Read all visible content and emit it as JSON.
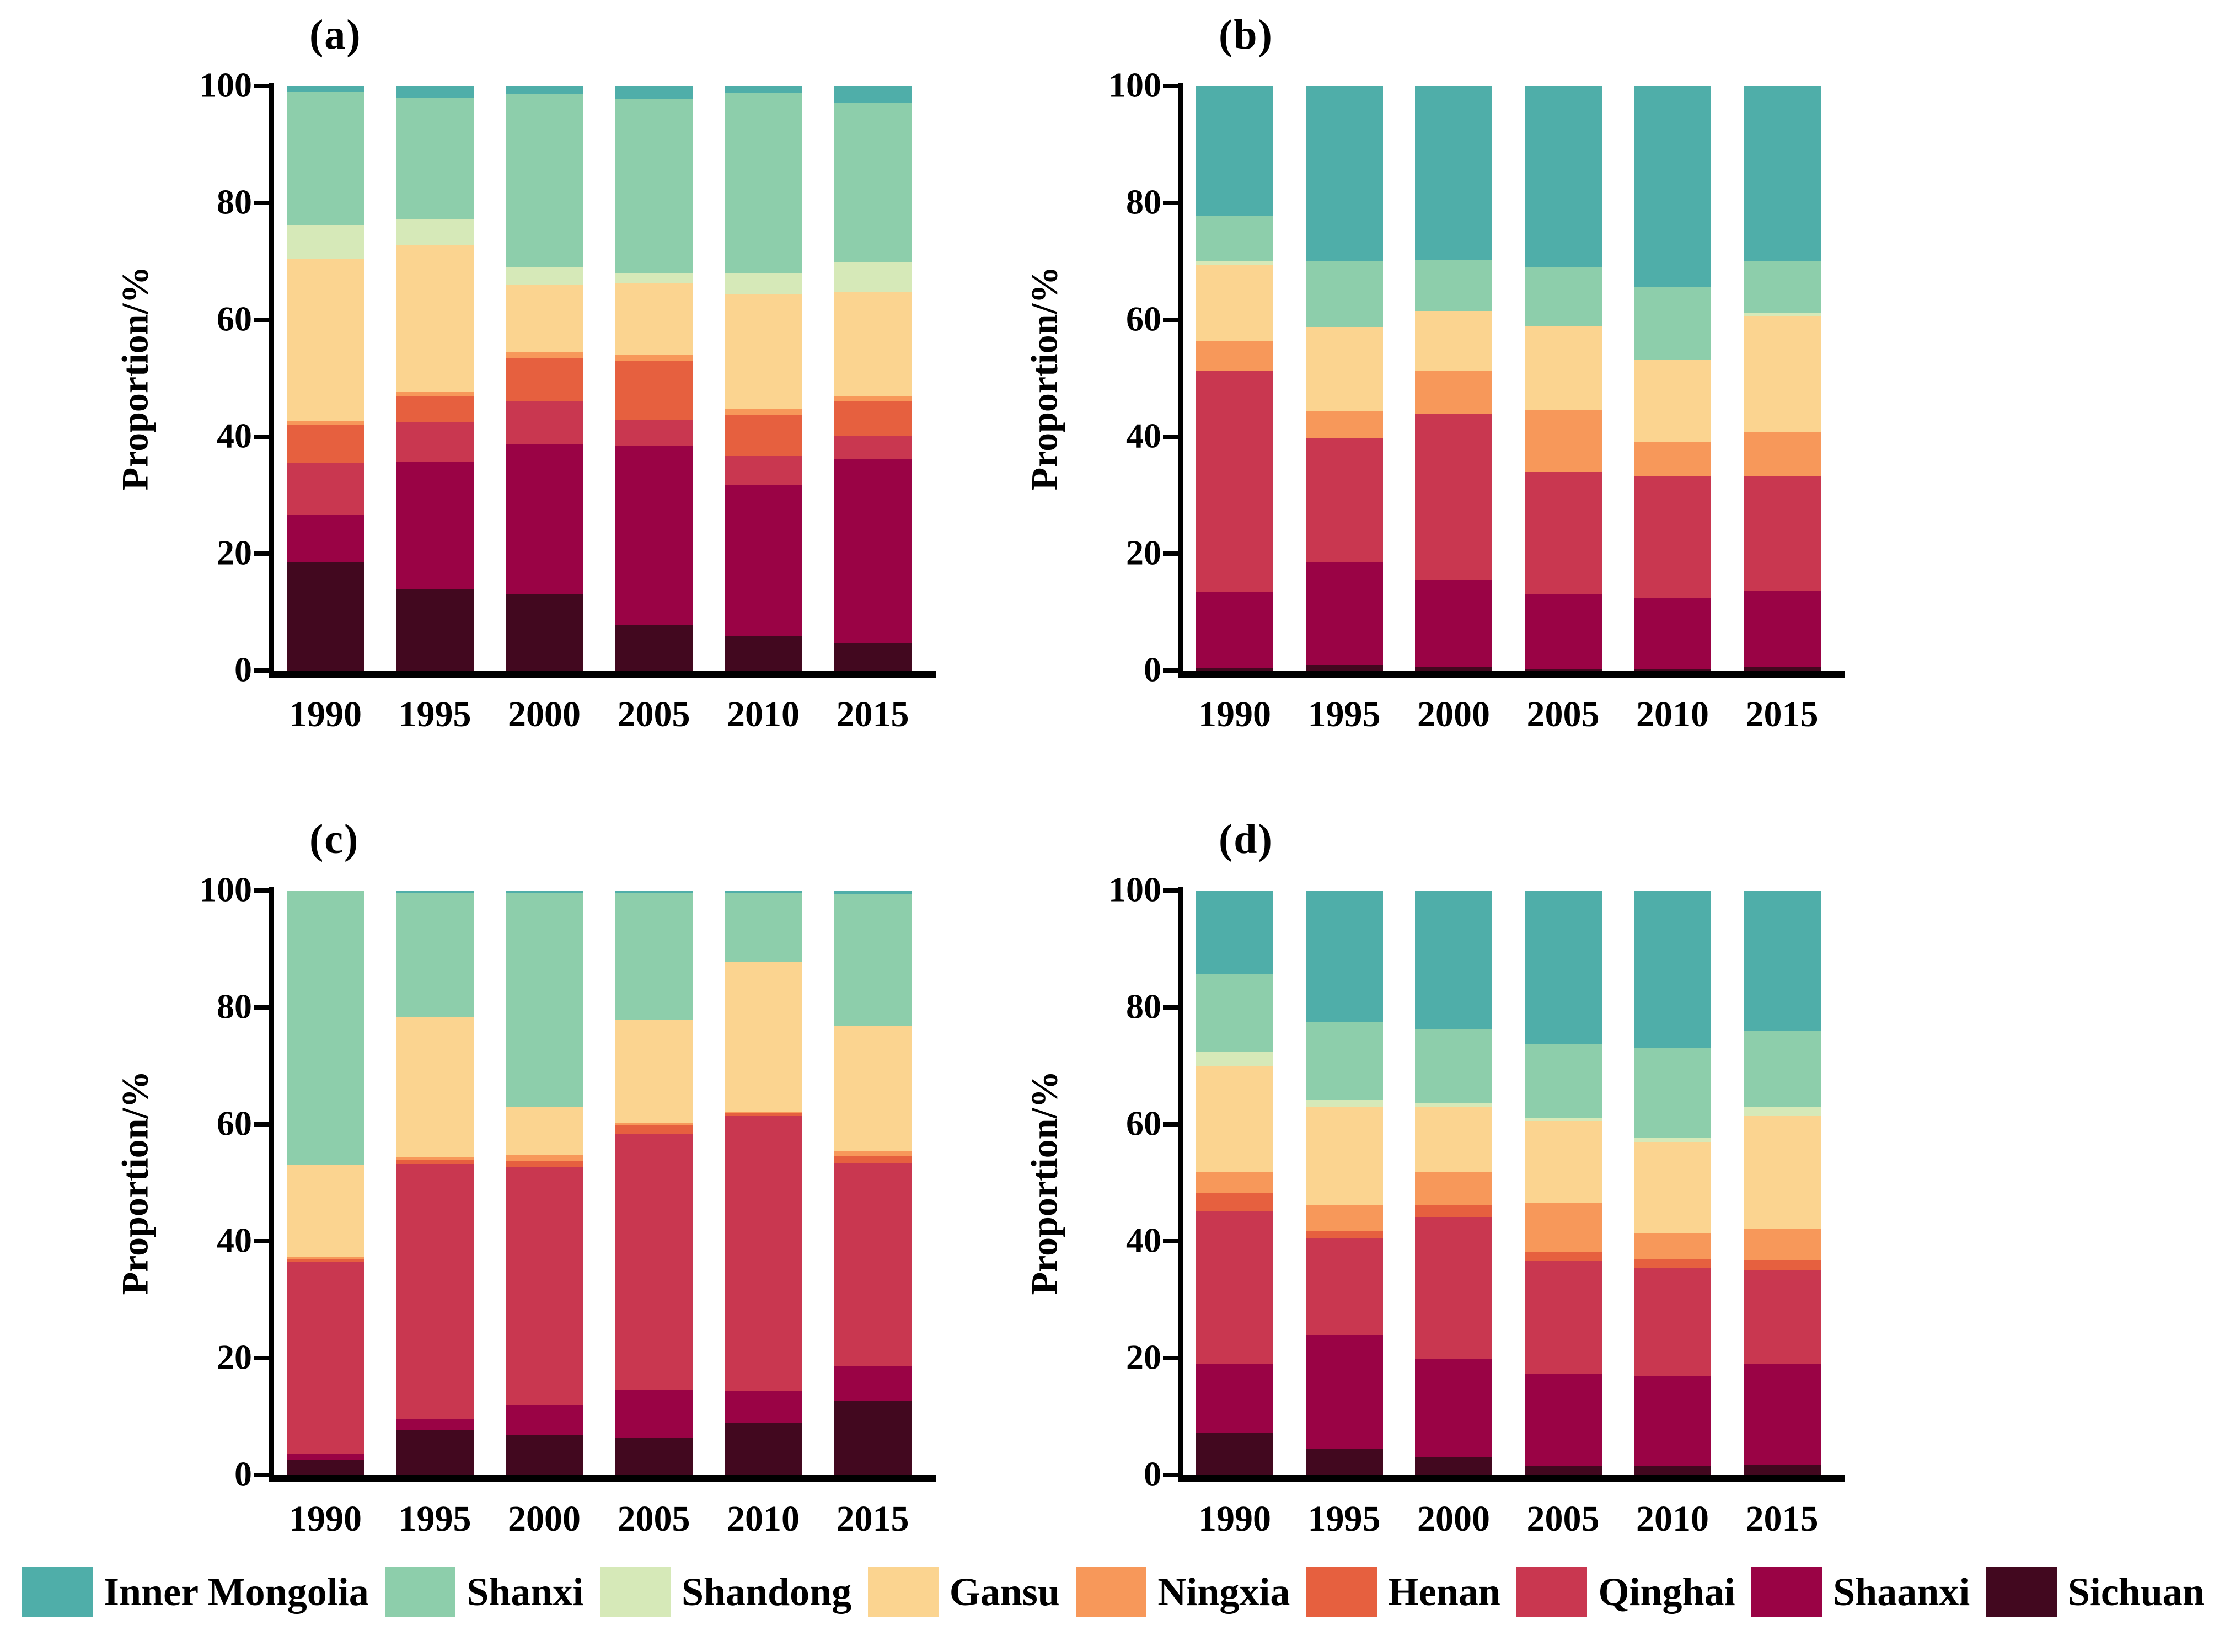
{
  "figure_background": "#ffffff",
  "y_axis": {
    "label": "Proportion/%",
    "ticks": [
      0,
      20,
      40,
      60,
      80,
      100
    ],
    "ylim": [
      0,
      100
    ]
  },
  "colors": {
    "Inner Mongolia": "#4FAEA9",
    "Shanxi": "#8DCEAB",
    "Shandong": "#D6E9B8",
    "Gansu": "#FBD490",
    "Ningxia": "#F7985A",
    "Henan": "#E6603F",
    "Qinghai": "#C93750",
    "Shaanxi": "#9A0345",
    "Sichuan": "#42081F"
  },
  "legend": [
    {
      "label": "Inner Mongolia",
      "color": "#4FAEA9"
    },
    {
      "label": "Shanxi",
      "color": "#8DCEAB"
    },
    {
      "label": "Shandong",
      "color": "#D6E9B8"
    },
    {
      "label": "Gansu",
      "color": "#FBD490"
    },
    {
      "label": "Ningxia",
      "color": "#F7985A"
    },
    {
      "label": "Henan",
      "color": "#E6603F"
    },
    {
      "label": "Qinghai",
      "color": "#C93750"
    },
    {
      "label": "Shaanxi",
      "color": "#9A0345"
    },
    {
      "label": "Sichuan",
      "color": "#42081F"
    }
  ],
  "chart_data": [
    {
      "panel": "a",
      "title": "(a)",
      "type": "bar",
      "stacked": true,
      "xlabel": "",
      "ylabel": "Proportion/%",
      "ylim": [
        0,
        100
      ],
      "grid": false,
      "legend_position": "bottom",
      "categories": [
        "1990",
        "1995",
        "2000",
        "2005",
        "2010",
        "2015"
      ],
      "series": [
        {
          "name": "Sichuan",
          "values": [
            18.5,
            14.0,
            13.0,
            7.7,
            5.9,
            4.6
          ]
        },
        {
          "name": "Shaanxi",
          "values": [
            8.1,
            21.8,
            25.8,
            30.7,
            25.8,
            31.6
          ]
        },
        {
          "name": "Qinghai",
          "values": [
            8.9,
            6.7,
            7.3,
            4.5,
            5.0,
            4.0
          ]
        },
        {
          "name": "Henan",
          "values": [
            6.6,
            4.4,
            7.4,
            10.1,
            7.0,
            5.8
          ]
        },
        {
          "name": "Ningxia",
          "values": [
            0.5,
            0.7,
            1.0,
            1.0,
            1.0,
            1.0
          ]
        },
        {
          "name": "Gansu",
          "values": [
            27.8,
            25.2,
            11.5,
            12.2,
            19.6,
            17.7
          ]
        },
        {
          "name": "Shandong",
          "values": [
            5.8,
            4.4,
            3.0,
            1.8,
            3.6,
            5.2
          ]
        },
        {
          "name": "Shanxi",
          "values": [
            22.8,
            20.8,
            29.6,
            29.7,
            31.0,
            27.3
          ]
        },
        {
          "name": "Inner Mongolia",
          "values": [
            1.0,
            2.0,
            1.4,
            2.3,
            1.1,
            2.8
          ]
        }
      ]
    },
    {
      "panel": "b",
      "title": "(b)",
      "type": "bar",
      "stacked": true,
      "xlabel": "",
      "ylabel": "Proportion/%",
      "ylim": [
        0,
        100
      ],
      "grid": false,
      "legend_position": "bottom",
      "categories": [
        "1990",
        "1995",
        "2000",
        "2005",
        "2010",
        "2015"
      ],
      "series": [
        {
          "name": "Sichuan",
          "values": [
            0.5,
            0.9,
            0.7,
            0.3,
            0.3,
            0.7
          ]
        },
        {
          "name": "Shaanxi",
          "values": [
            12.9,
            17.7,
            14.9,
            12.7,
            12.2,
            12.9
          ]
        },
        {
          "name": "Qinghai",
          "values": [
            37.8,
            21.2,
            28.3,
            21.0,
            20.8,
            19.7
          ]
        },
        {
          "name": "Henan",
          "values": [
            0,
            0,
            0,
            0,
            0,
            0
          ]
        },
        {
          "name": "Ningxia",
          "values": [
            5.2,
            4.6,
            7.3,
            10.5,
            5.9,
            7.5
          ]
        },
        {
          "name": "Gansu",
          "values": [
            12.9,
            14.4,
            10.3,
            14.5,
            14.0,
            19.9
          ]
        },
        {
          "name": "Shandong",
          "values": [
            0.7,
            0,
            0,
            0,
            0,
            0.5
          ]
        },
        {
          "name": "Shanxi",
          "values": [
            7.7,
            11.3,
            8.7,
            10.0,
            12.5,
            8.8
          ]
        },
        {
          "name": "Inner Mongolia",
          "values": [
            22.3,
            29.9,
            29.8,
            31.0,
            34.3,
            30.0
          ]
        }
      ]
    },
    {
      "panel": "c",
      "title": "(c)",
      "type": "bar",
      "stacked": true,
      "xlabel": "",
      "ylabel": "Proportion/%",
      "ylim": [
        0,
        100
      ],
      "grid": false,
      "legend_position": "bottom",
      "categories": [
        "1990",
        "1995",
        "2000",
        "2005",
        "2010",
        "2015"
      ],
      "series": [
        {
          "name": "Sichuan",
          "values": [
            2.6,
            7.6,
            6.8,
            6.3,
            9.0,
            12.7
          ]
        },
        {
          "name": "Shaanxi",
          "values": [
            1.0,
            2.0,
            5.2,
            8.3,
            5.4,
            5.9
          ]
        },
        {
          "name": "Qinghai",
          "values": [
            32.8,
            43.6,
            40.6,
            43.8,
            47.0,
            34.8
          ]
        },
        {
          "name": "Henan",
          "values": [
            0.6,
            0.8,
            1.1,
            1.5,
            0.5,
            1.1
          ]
        },
        {
          "name": "Ningxia",
          "values": [
            0.3,
            0.3,
            1.0,
            0.3,
            0.2,
            0.9
          ]
        },
        {
          "name": "Gansu",
          "values": [
            15.7,
            24.1,
            8.3,
            17.6,
            25.7,
            21.5
          ]
        },
        {
          "name": "Shandong",
          "values": [
            0,
            0,
            0,
            0,
            0,
            0
          ]
        },
        {
          "name": "Shanxi",
          "values": [
            47.0,
            21.2,
            36.6,
            21.8,
            11.7,
            22.5
          ]
        },
        {
          "name": "Inner Mongolia",
          "values": [
            0,
            0.4,
            0.4,
            0.4,
            0.5,
            0.6
          ]
        }
      ]
    },
    {
      "panel": "d",
      "title": "(d)",
      "type": "bar",
      "stacked": true,
      "xlabel": "",
      "ylabel": "Proportion/%",
      "ylim": [
        0,
        100
      ],
      "grid": false,
      "legend_position": "bottom",
      "categories": [
        "1990",
        "1995",
        "2000",
        "2005",
        "2010",
        "2015"
      ],
      "series": [
        {
          "name": "Sichuan",
          "values": [
            7.2,
            4.5,
            3.0,
            1.6,
            1.6,
            1.7
          ]
        },
        {
          "name": "Shaanxi",
          "values": [
            11.8,
            19.5,
            16.8,
            15.8,
            15.4,
            17.3
          ]
        },
        {
          "name": "Qinghai",
          "values": [
            26.2,
            16.6,
            24.4,
            19.2,
            18.4,
            16.0
          ]
        },
        {
          "name": "Henan",
          "values": [
            3.0,
            1.2,
            2.0,
            1.6,
            1.6,
            1.8
          ]
        },
        {
          "name": "Ningxia",
          "values": [
            3.6,
            4.4,
            5.6,
            8.4,
            4.4,
            5.4
          ]
        },
        {
          "name": "Gansu",
          "values": [
            18.2,
            16.8,
            11.2,
            14.0,
            15.6,
            19.2
          ]
        },
        {
          "name": "Shandong",
          "values": [
            2.4,
            1.2,
            0.6,
            0.4,
            0.6,
            1.6
          ]
        },
        {
          "name": "Shanxi",
          "values": [
            13.4,
            13.4,
            12.6,
            12.8,
            15.4,
            13.0
          ]
        },
        {
          "name": "Inner Mongolia",
          "values": [
            14.2,
            22.4,
            23.8,
            26.2,
            27.0,
            24.0
          ]
        }
      ]
    }
  ]
}
